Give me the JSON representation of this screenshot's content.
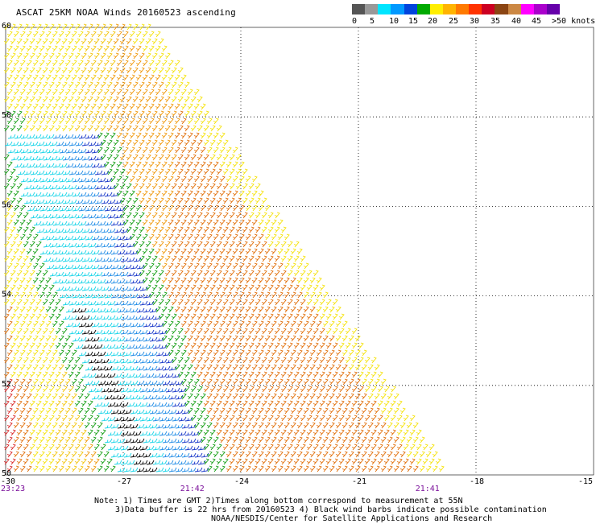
{
  "title": "ASCAT 25KM NOAA Winds 20160523 ascending",
  "colorbar": {
    "colors": [
      "#555555",
      "#999999",
      "#00e5ff",
      "#0099ff",
      "#0044dd",
      "#00aa00",
      "#ffee00",
      "#ffb400",
      "#ff7a00",
      "#ff3300",
      "#cc0022",
      "#8b4513",
      "#cc8844",
      "#ff00ff",
      "#aa00cc",
      "#6600aa"
    ],
    "labels": [
      "0",
      "5",
      "10",
      "15",
      "20",
      "25",
      "30",
      "35",
      "40",
      "45",
      ">50 knots"
    ]
  },
  "map": {
    "lat_labels": [
      "60",
      "58",
      "56",
      "54",
      "52",
      "50"
    ],
    "lon_labels": [
      "-30",
      "-27",
      "-24",
      "-21",
      "-18",
      "-15"
    ],
    "time_labels": [
      {
        "text": "23:23",
        "lon": -30
      },
      {
        "text": "21:42",
        "lon": -25.3
      },
      {
        "text": "21:41",
        "lon": -19.3
      }
    ]
  },
  "notes": {
    "line1": "Note: 1) Times are GMT 2)Times along bottom correspond to measurement at 55N",
    "line2": "3)Data buffer is 22 hrs from 20160523 4) Black wind barbs indicate possible contamination",
    "line3": "NOAA/NESDIS/Center for Satellite Applications and Research"
  }
}
